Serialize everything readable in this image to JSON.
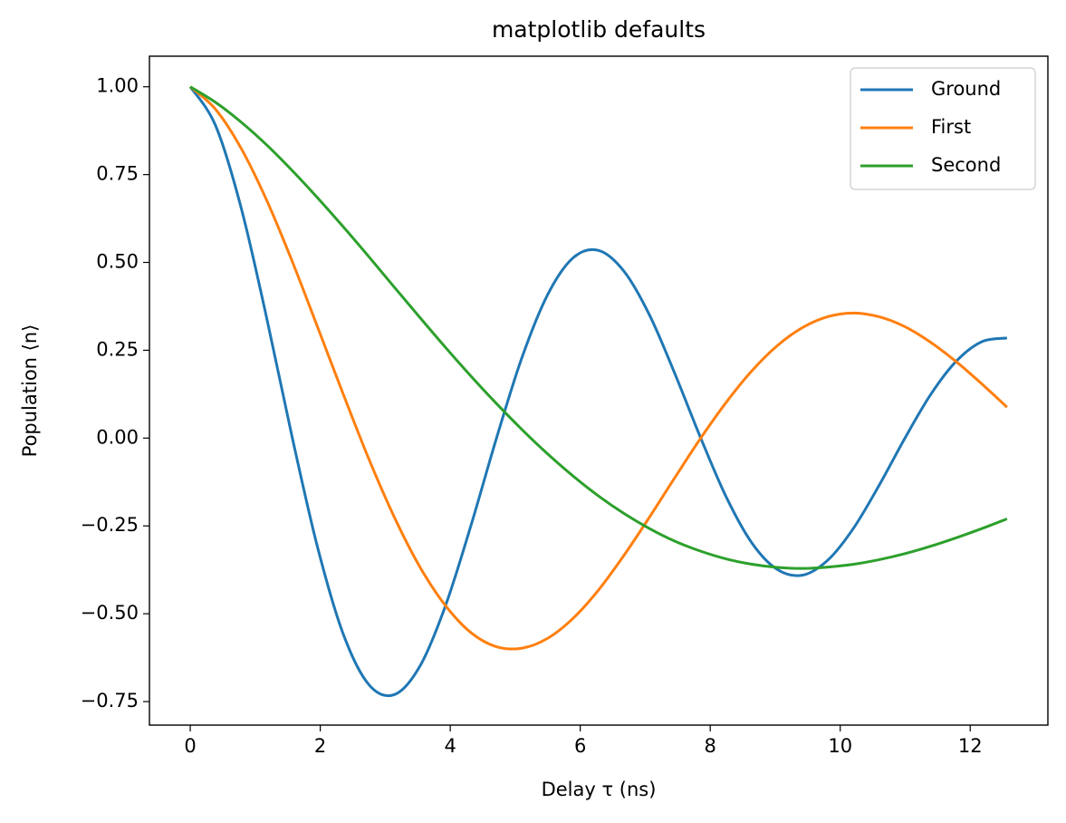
{
  "chart_data": {
    "type": "line",
    "title": "matplotlib defaults",
    "x_label": "Delay τ (ns)",
    "y_label": "Population ⟨n⟩",
    "x": [
      0,
      0.393,
      0.785,
      1.178,
      1.571,
      1.963,
      2.356,
      2.749,
      3.142,
      3.534,
      3.927,
      4.32,
      4.712,
      5.105,
      5.498,
      5.89,
      6.283,
      6.676,
      7.069,
      7.461,
      7.854,
      8.247,
      8.639,
      9.032,
      9.425,
      9.817,
      10.21,
      10.603,
      10.996,
      11.388,
      11.781,
      12.174,
      12.566
    ],
    "series": [
      {
        "name": "Ground",
        "color": "#1f77b4",
        "values": [
          1,
          0.888,
          0.654,
          0.34,
          0,
          -0.314,
          -0.559,
          -0.702,
          -0.73,
          -0.649,
          -0.477,
          -0.248,
          0,
          0.23,
          0.408,
          0.513,
          0.534,
          0.474,
          0.349,
          0.181,
          0,
          -0.168,
          -0.298,
          -0.374,
          -0.39,
          -0.346,
          -0.255,
          -0.133,
          0,
          0.123,
          0.218,
          0.274,
          0.285
        ]
      },
      {
        "name": "First",
        "color": "#ff7f0e",
        "values": [
          1,
          0.935,
          0.824,
          0.676,
          0.502,
          0.314,
          0.124,
          -0.06,
          -0.226,
          -0.367,
          -0.477,
          -0.554,
          -0.594,
          -0.598,
          -0.57,
          -0.513,
          -0.432,
          -0.333,
          -0.224,
          -0.111,
          0,
          0.102,
          0.191,
          0.263,
          0.315,
          0.346,
          0.356,
          0.345,
          0.317,
          0.273,
          0.218,
          0.155,
          0.088
        ]
      },
      {
        "name": "Second",
        "color": "#2ca02c",
        "values": [
          1,
          0.955,
          0.899,
          0.834,
          0.761,
          0.683,
          0.601,
          0.516,
          0.429,
          0.343,
          0.258,
          0.176,
          0.098,
          0.024,
          -0.045,
          -0.108,
          -0.165,
          -0.215,
          -0.258,
          -0.294,
          -0.322,
          -0.344,
          -0.359,
          -0.368,
          -0.371,
          -0.367,
          -0.359,
          -0.346,
          -0.329,
          -0.308,
          -0.284,
          -0.258,
          -0.23
        ]
      }
    ],
    "xlim": [
      -0.628,
      13.195
    ],
    "ylim": [
      -0.817,
      1.087
    ],
    "xticks": [
      0,
      2,
      4,
      6,
      8,
      10,
      12
    ],
    "yticks": [
      {
        "value": -0.75,
        "label": "−0.75"
      },
      {
        "value": -0.5,
        "label": "−0.50"
      },
      {
        "value": -0.25,
        "label": "−0.25"
      },
      {
        "value": 0,
        "label": "0.00"
      },
      {
        "value": 0.25,
        "label": "0.25"
      },
      {
        "value": 0.5,
        "label": "0.50"
      },
      {
        "value": 0.75,
        "label": "0.75"
      },
      {
        "value": 1,
        "label": "1.00"
      }
    ],
    "grid": false,
    "legend": "upper right"
  }
}
